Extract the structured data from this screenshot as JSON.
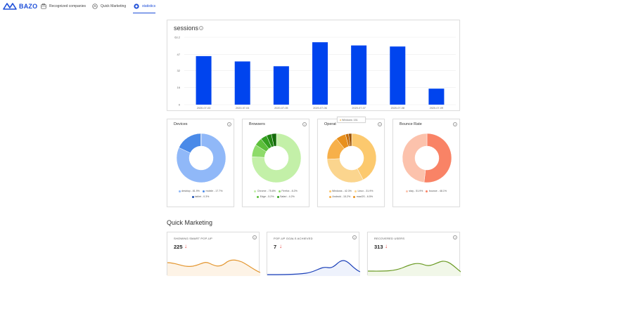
{
  "nav": {
    "logo_text": "BAZO",
    "items": [
      {
        "label": "Recognized companies",
        "icon": "building-icon"
      },
      {
        "label": "Quick Marketing",
        "icon": "marketing-icon"
      },
      {
        "label": "statistics",
        "icon": "statistics-icon",
        "active": true
      }
    ],
    "accent": "#1d4ed8"
  },
  "sessions": {
    "title": "sessions",
    "help": "?"
  },
  "chart_data": [
    {
      "type": "bar",
      "title": "sessions",
      "categories": [
        "2020-07-03",
        "2020-07-04",
        "2020-07-05",
        "2020-07-06",
        "2020-07-07",
        "2020-07-08",
        "2020-07-09"
      ],
      "values": [
        45.5,
        40.5,
        36,
        58.5,
        55.5,
        54.5,
        15
      ],
      "ylim": [
        0,
        63.2
      ],
      "yticks": [
        "0",
        "16",
        "32",
        "47",
        "63.2"
      ],
      "color": "#0044ee",
      "xlabel": "",
      "ylabel": ""
    },
    {
      "type": "pie",
      "title": "Devices",
      "slices": [
        {
          "label": "desktop",
          "value": 81.9,
          "color": "#90b8f8"
        },
        {
          "label": "mobile",
          "value": 17.7,
          "color": "#4a8ae8"
        },
        {
          "label": "tablet",
          "value": 0.3,
          "color": "#1f4fb0"
        }
      ]
    },
    {
      "type": "pie",
      "title": "Browsers",
      "slices": [
        {
          "label": "Chrome",
          "value": 75.8,
          "color": "#c3f0a8"
        },
        {
          "label": "Firefox",
          "value": 8.2,
          "color": "#8edb6a"
        },
        {
          "label": "Edge",
          "value": 5.2,
          "color": "#5cbf3a"
        },
        {
          "label": "Safari",
          "value": 4.2,
          "color": "#34a020"
        },
        {
          "label": "",
          "value": 3.3,
          "color": "#218512"
        },
        {
          "label": "",
          "value": 3.3,
          "color": "#146b0a"
        }
      ]
    },
    {
      "type": "pie",
      "title": "Operat",
      "slices": [
        {
          "label": "Windows",
          "value": 42.3,
          "color": "#fcc96e"
        },
        {
          "label": "Linux",
          "value": 31.9,
          "color": "#fbd58e"
        },
        {
          "label": "Android",
          "value": 15.2,
          "color": "#f7b04a"
        },
        {
          "label": "macOS",
          "value": 6.5,
          "color": "#e8901e"
        },
        {
          "label": "",
          "value": 2.1,
          "color": "#c96f0b"
        },
        {
          "label": "",
          "value": 2.0,
          "color": "#9c5206"
        }
      ]
    },
    {
      "type": "pie",
      "title": "Bounce Rate",
      "slices": [
        {
          "label": "stay",
          "value": 51.9,
          "color": "#f98366"
        },
        {
          "label": "bounce",
          "value": 48.1,
          "color": "#fcc2ac"
        }
      ]
    }
  ],
  "pies": {
    "devices": {
      "title": "Devices",
      "legend": [
        "desktop - 81.9%",
        "mobile - 17.7%",
        "tablet - 0.3%"
      ]
    },
    "browsers": {
      "title": "Browsers",
      "legend": [
        "Chrome - 75.8%",
        "Firefox - 8.2%",
        "Edge - 5.2%",
        "Safari - 4.2%"
      ]
    },
    "os": {
      "title": "Operat",
      "legend": [
        "Windows - 42.3%",
        "Linux - 31.9%",
        "Android - 15.2%",
        "macOS - 6.5%"
      ],
      "tooltip": "Windows: 151"
    },
    "bounce": {
      "title": "Bounce Rate",
      "legend": [
        "stay - 51.9%",
        "bounce - 48.1%"
      ]
    }
  },
  "quick_marketing": {
    "title": "Quick Marketing",
    "cards": [
      {
        "label": "SHOWING SMART POP-UP",
        "value": "225",
        "arrow": "↓",
        "color": "#e3962f"
      },
      {
        "label": "POP-UP GOALS ACHIEVED",
        "value": "7",
        "arrow": "↓",
        "color": "#1a3fb8"
      },
      {
        "label": "RECOVERED USERS",
        "value": "313",
        "arrow": "↓",
        "color": "#6a9a23"
      }
    ]
  }
}
